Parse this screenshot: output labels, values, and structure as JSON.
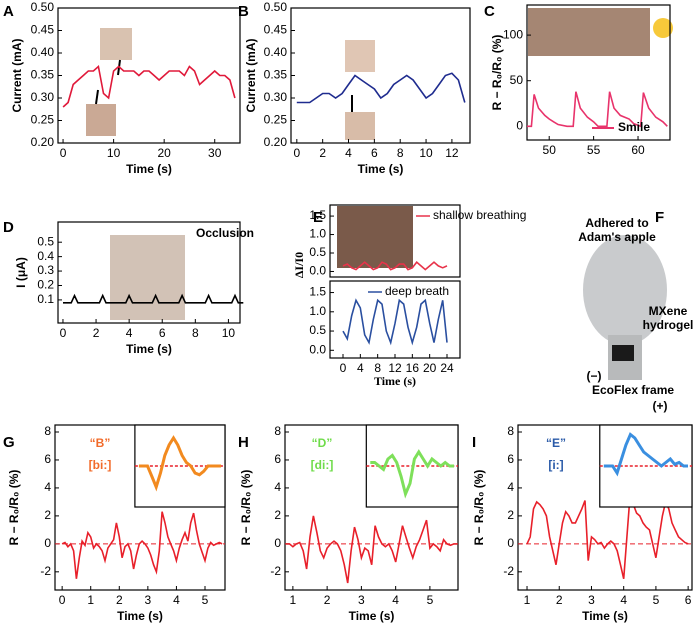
{
  "chart_data": [
    {
      "type": "line",
      "panel": "A",
      "xlabel": "Time (s)",
      "ylabel": "Current (mA)",
      "xlim": [
        -1,
        35
      ],
      "xticks": [
        0,
        10,
        20,
        30
      ],
      "ylim": [
        0.2,
        0.5
      ],
      "yticks": [
        {
          "value": 0.2,
          "label": "0.20"
        },
        0.25,
        {
          "value": 0.3,
          "label": "0.30"
        },
        0.35,
        {
          "value": 0.4,
          "label": "0.40"
        },
        0.45,
        {
          "value": 0.5,
          "label": "0.50"
        }
      ],
      "x": [
        0,
        1,
        2,
        3,
        4,
        5,
        6,
        7,
        8,
        9,
        10,
        11,
        12,
        13,
        14,
        15,
        16,
        17,
        18,
        19,
        20,
        21,
        22,
        23,
        24,
        25,
        26,
        27,
        28,
        29,
        30,
        31,
        32,
        33,
        34
      ],
      "series": [
        {
          "color": "#e0193a",
          "values": [
            0.28,
            0.29,
            0.33,
            0.34,
            0.35,
            0.36,
            0.36,
            0.37,
            0.31,
            0.3,
            0.36,
            0.37,
            0.36,
            0.36,
            0.36,
            0.35,
            0.36,
            0.36,
            0.35,
            0.34,
            0.35,
            0.36,
            0.36,
            0.36,
            0.35,
            0.37,
            0.36,
            0.33,
            0.34,
            0.35,
            0.36,
            0.35,
            0.35,
            0.34,
            0.3
          ]
        }
      ]
    },
    {
      "type": "line",
      "panel": "B",
      "xlabel": "Time (s)",
      "ylabel": "Current (mA)",
      "xlim": [
        -0.45,
        13.4
      ],
      "xticks": [
        0,
        2,
        4,
        6,
        8,
        10,
        12
      ],
      "ylim": [
        0.2,
        0.5
      ],
      "yticks": [
        {
          "value": 0.2,
          "label": "0.20"
        },
        0.25,
        {
          "value": 0.3,
          "label": "0.30"
        },
        0.35,
        {
          "value": 0.4,
          "label": "0.40"
        },
        0.45,
        {
          "value": 0.5,
          "label": "0.50"
        }
      ],
      "x": [
        0,
        0.5,
        1,
        1.5,
        2,
        2.5,
        3,
        3.5,
        4,
        4.5,
        5,
        5.5,
        6,
        6.5,
        7,
        7.5,
        8,
        8.5,
        9,
        9.5,
        10,
        10.5,
        11,
        11.5,
        12,
        12.5,
        13
      ],
      "series": [
        {
          "color": "#1f2c8f",
          "values": [
            0.29,
            0.29,
            0.29,
            0.3,
            0.31,
            0.31,
            0.3,
            0.31,
            0.33,
            0.35,
            0.34,
            0.33,
            0.32,
            0.3,
            0.31,
            0.33,
            0.34,
            0.35,
            0.34,
            0.32,
            0.3,
            0.31,
            0.33,
            0.35,
            0.355,
            0.34,
            0.29
          ]
        }
      ]
    },
    {
      "type": "line",
      "panel": "C",
      "ylabel": "R − R₀/R₀ (%)",
      "xlim": [
        47.5,
        63.6
      ],
      "xticks": [
        50,
        55,
        60
      ],
      "ylim": [
        -15,
        133
      ],
      "yticks": [
        0,
        50,
        100
      ],
      "legend": "lower right",
      "x": [
        47.5,
        48,
        48.3,
        48.8,
        49.5,
        50,
        50.5,
        51,
        52,
        52.7,
        53,
        53.5,
        54.3,
        55,
        55.5,
        56.5,
        56.8,
        57.3,
        58,
        59,
        59.5,
        60.3,
        60.6,
        61.2,
        62,
        62.8,
        63.3
      ],
      "series": [
        {
          "name": "Smile",
          "color": "#e8336b",
          "values": [
            0,
            0,
            35,
            20,
            12,
            8,
            5,
            2,
            0,
            0,
            38,
            20,
            10,
            5,
            0,
            0,
            38,
            20,
            12,
            8,
            3,
            0,
            37,
            20,
            10,
            5,
            0
          ]
        }
      ]
    },
    {
      "type": "line",
      "panel": "D",
      "xlabel": "Time (s)",
      "ylabel": "I (μA)",
      "annotations": [
        "Occlusion"
      ],
      "xlim": [
        -0.3,
        10.7
      ],
      "xticks": [
        0,
        2,
        4,
        6,
        8,
        10
      ],
      "ylim": [
        -0.06,
        0.64
      ],
      "yticks": [
        0.1,
        0.2,
        0.3,
        0.4,
        0.5
      ],
      "x": [
        0,
        0.5,
        0.7,
        0.9,
        1.5,
        2.2,
        2.4,
        2.6,
        3.2,
        3.8,
        4.0,
        4.2,
        4.8,
        5.4,
        5.6,
        5.8,
        6.4,
        7.0,
        7.2,
        7.4,
        8.0,
        8.6,
        8.8,
        9.0,
        9.6,
        10.2,
        10.4,
        10.6,
        10.9
      ],
      "series": [
        {
          "color": "#000000",
          "values": [
            0.08,
            0.08,
            0.13,
            0.08,
            0.08,
            0.08,
            0.13,
            0.08,
            0.08,
            0.08,
            0.13,
            0.08,
            0.08,
            0.08,
            0.13,
            0.08,
            0.08,
            0.08,
            0.13,
            0.08,
            0.08,
            0.08,
            0.13,
            0.08,
            0.08,
            0.08,
            0.13,
            0.08,
            0.08
          ]
        }
      ]
    },
    {
      "type": "stacked-line",
      "panel": "E",
      "xlabel": "Time (s)",
      "ylabel": "ΔI/I0",
      "xlim": [
        -3,
        27
      ],
      "xticks": [
        0,
        4,
        8,
        12,
        16,
        20,
        24
      ],
      "x": [
        0,
        1,
        2,
        3,
        4,
        5,
        6,
        7,
        8,
        9,
        10,
        11,
        12,
        13,
        14,
        15,
        16,
        17,
        18,
        19,
        20,
        21,
        22,
        23,
        24
      ],
      "subplots": [
        {
          "ylim": [
            -0.15,
            1.8
          ],
          "yticks": [
            {
              "value": 0,
              "label": "0.0"
            },
            0.5,
            {
              "value": 1,
              "label": "1.0"
            },
            1.5
          ],
          "series": [
            {
              "name": "shallow breathing",
              "color": "#e8334a",
              "values": [
                0.15,
                0.2,
                0.1,
                0.05,
                0.15,
                0.25,
                0.15,
                0.05,
                0.1,
                0.25,
                0.2,
                0.05,
                0.1,
                0.2,
                0.2,
                0.05,
                0.1,
                0.25,
                0.15,
                0.05,
                0.15,
                0.25,
                0.15,
                0.1,
                0.15
              ]
            }
          ]
        },
        {
          "ylim": [
            -0.2,
            1.8
          ],
          "yticks": [
            {
              "value": 0,
              "label": "0.0"
            },
            0.5,
            {
              "value": 1,
              "label": "1.0"
            },
            1.5
          ],
          "series": [
            {
              "name": "deep breath",
              "color": "#2a4fa0",
              "values": [
                0.5,
                0.3,
                0.9,
                1.3,
                1.1,
                0.4,
                0.2,
                0.8,
                1.3,
                1.2,
                0.5,
                0.2,
                0.7,
                1.3,
                1.2,
                0.6,
                0.2,
                0.6,
                1.2,
                1.3,
                0.7,
                0.2,
                0.8,
                1.3,
                0.2
              ]
            }
          ]
        }
      ]
    },
    {
      "type": "illustration",
      "panel": "F",
      "annotations": [
        "Adhered to",
        "Adam's apple",
        "MXene",
        "hydrogel",
        "(−)",
        "EcoFlex frame",
        "(+)"
      ]
    },
    {
      "type": "line",
      "panel": "G",
      "xlabel": "Time (s)",
      "ylabel": "R − R₀/R₀ (%)",
      "annotations": [
        "“B”",
        "[bi:]"
      ],
      "annotation_color": "#f26b2a",
      "hline": 0,
      "xlim": [
        -0.25,
        5.7
      ],
      "xticks": [
        0,
        1,
        2,
        3,
        4,
        5
      ],
      "ylim": [
        -3.3,
        8.5
      ],
      "yticks": [
        -2,
        0,
        2,
        4,
        6,
        8
      ],
      "x": [
        0,
        0.1,
        0.2,
        0.3,
        0.4,
        0.5,
        0.6,
        0.7,
        0.8,
        0.9,
        1,
        1.1,
        1.2,
        1.3,
        1.4,
        1.5,
        1.6,
        1.7,
        1.8,
        1.9,
        2,
        2.1,
        2.2,
        2.3,
        2.4,
        2.5,
        2.6,
        2.7,
        2.8,
        2.9,
        3,
        3.1,
        3.2,
        3.3,
        3.4,
        3.5,
        3.6,
        3.7,
        3.8,
        3.9,
        4,
        4.1,
        4.2,
        4.3,
        4.4,
        4.5,
        4.6,
        4.7,
        4.8,
        4.9,
        5,
        5.1,
        5.2,
        5.3,
        5.4,
        5.5,
        5.6
      ],
      "series": [
        {
          "color": "#e8202a",
          "values": [
            0,
            0.1,
            -0.2,
            0,
            -0.5,
            -2.5,
            -1,
            0.2,
            -0.1,
            0.8,
            0.5,
            -0.3,
            0,
            -0.2,
            -0.5,
            -1.2,
            -0.3,
            0,
            0.3,
            1.5,
            0.5,
            -1,
            -0.2,
            0,
            -0.5,
            -1.8,
            -0.8,
            0,
            0.2,
            0,
            -0.3,
            -0.8,
            -1.5,
            -2,
            -0.5,
            2.3,
            1.5,
            0.5,
            0,
            -0.5,
            -1.2,
            -0.3,
            0.3,
            0.8,
            0.2,
            1.5,
            2.2,
            1,
            0,
            -0.6,
            -1.2,
            -0.3,
            0.1,
            -0.1,
            0,
            0.1,
            0
          ]
        }
      ],
      "inset": {
        "color": "#f28a1f",
        "ylim": [
          -1,
          1
        ],
        "hline": 0,
        "values": [
          0,
          0,
          0,
          -0.3,
          -0.6,
          -0.2,
          0.3,
          0.6,
          0.8,
          0.6,
          0.3,
          0.1,
          0,
          -0.2,
          -0.25,
          -0.15,
          0,
          0,
          0,
          0
        ]
      }
    },
    {
      "type": "line",
      "panel": "H",
      "xlabel": "Time (s)",
      "ylabel": "R − R₀/R₀ (%)",
      "annotations": [
        "“D”",
        "[di:]"
      ],
      "annotation_color": "#6fdc4a",
      "hline": 0,
      "xlim": [
        0.77,
        5.82
      ],
      "xticks": [
        1,
        2,
        3,
        4,
        5
      ],
      "ylim": [
        -3.3,
        8.5
      ],
      "yticks": [
        -2,
        0,
        2,
        4,
        6,
        8
      ],
      "x": [
        0.8,
        0.9,
        1,
        1.1,
        1.2,
        1.3,
        1.4,
        1.5,
        1.6,
        1.7,
        1.8,
        1.9,
        2,
        2.1,
        2.2,
        2.3,
        2.4,
        2.5,
        2.6,
        2.7,
        2.8,
        2.9,
        3,
        3.1,
        3.2,
        3.3,
        3.4,
        3.5,
        3.6,
        3.7,
        3.8,
        3.9,
        4,
        4.1,
        4.2,
        4.3,
        4.4,
        4.5,
        4.6,
        4.7,
        4.8,
        4.9,
        5,
        5.1,
        5.2,
        5.3,
        5.4,
        5.5,
        5.6,
        5.7,
        5.8
      ],
      "series": [
        {
          "color": "#e8202a",
          "values": [
            0,
            0,
            -0.2,
            0,
            0.1,
            -0.5,
            -1.8,
            0.5,
            2,
            0.8,
            -0.5,
            -1,
            -0.3,
            0,
            0.2,
            0,
            -0.5,
            -1.5,
            -2.8,
            -0.5,
            1.2,
            0.3,
            -1,
            -0.3,
            -0.5,
            -1.5,
            1.3,
            0.5,
            0,
            -0.2,
            0,
            -0.5,
            -1.3,
            0,
            1.3,
            0.5,
            -0.3,
            -1,
            -0.2,
            0.3,
            1,
            1.7,
            -0.3,
            0,
            -0.2,
            -0.5,
            0.3,
            0,
            -0.1,
            0,
            0
          ]
        }
      ],
      "inset": {
        "color": "#7ee05a",
        "ylim": [
          -1,
          1
        ],
        "hline": 0,
        "values": [
          0.1,
          0.1,
          0,
          -0.1,
          0.2,
          0.3,
          0.1,
          -0.3,
          -0.8,
          -0.5,
          0.2,
          0.4,
          0.2,
          0,
          0.2,
          0.1,
          0,
          0.1,
          0,
          0
        ]
      }
    },
    {
      "type": "line",
      "panel": "I",
      "xlabel": "Time (s)",
      "ylabel": "R − R₀/R₀ (%)",
      "annotations": [
        "“E”",
        "[i:]"
      ],
      "annotation_color": "#2a5aa8",
      "hline": 0,
      "xlim": [
        0.72,
        6.12
      ],
      "xticks": [
        1,
        2,
        3,
        4,
        5,
        6
      ],
      "ylim": [
        -3.3,
        8.5
      ],
      "yticks": [
        -2,
        0,
        2,
        4,
        6,
        8
      ],
      "x": [
        1,
        1.1,
        1.2,
        1.3,
        1.4,
        1.5,
        1.6,
        1.7,
        1.8,
        1.9,
        2,
        2.1,
        2.2,
        2.3,
        2.4,
        2.5,
        2.6,
        2.7,
        2.8,
        2.9,
        3,
        3.1,
        3.2,
        3.3,
        3.4,
        3.5,
        3.6,
        3.7,
        3.8,
        3.9,
        4,
        4.1,
        4.2,
        4.3,
        4.4,
        4.5,
        4.6,
        4.7,
        4.8,
        4.9,
        5,
        5.1,
        5.2,
        5.3,
        5.4,
        5.5,
        5.6,
        5.7,
        5.8,
        5.9,
        6
      ],
      "series": [
        {
          "color": "#e8202a",
          "values": [
            0,
            0.5,
            2.5,
            3,
            2.8,
            2.5,
            2,
            0.5,
            -0.5,
            -1.5,
            0,
            1.5,
            2.3,
            2,
            1.5,
            1.5,
            2,
            2.5,
            3.1,
            -1.2,
            0.5,
            0.3,
            0,
            0.1,
            -0.3,
            0,
            0.2,
            0,
            -0.5,
            -1.5,
            -2.5,
            0.5,
            3.5,
            2.8,
            2.2,
            2,
            1.5,
            1.2,
            1,
            0,
            -1,
            0.5,
            2,
            3,
            2.5,
            1.5,
            1,
            0.5,
            0.3,
            0.1,
            0
          ]
        }
      ],
      "inset": {
        "color": "#3a8fe0",
        "ylim": [
          -1,
          1
        ],
        "hline": 0,
        "values": [
          0,
          0,
          0,
          -0.2,
          0.2,
          0.6,
          0.9,
          0.8,
          0.6,
          0.4,
          0.3,
          0.2,
          0.1,
          0,
          0.1,
          0.2,
          0.05,
          0.1,
          0,
          0
        ]
      }
    }
  ]
}
